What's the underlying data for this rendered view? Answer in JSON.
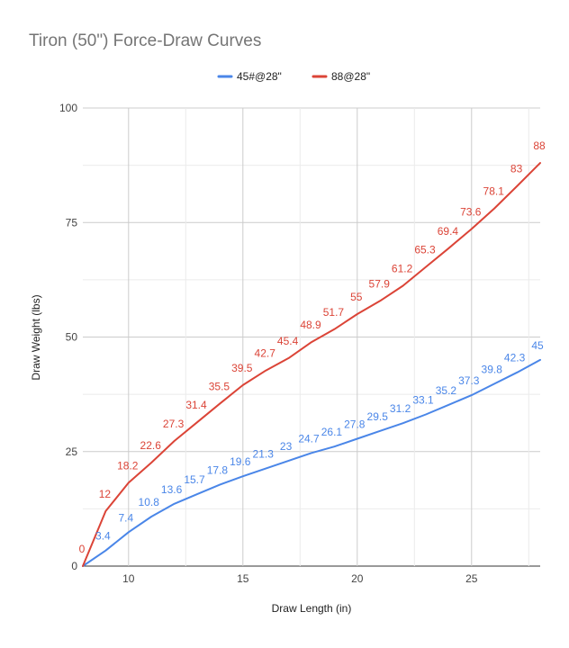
{
  "chart_data": {
    "type": "line",
    "title": "Tiron (50\") Force-Draw Curves",
    "xlabel": "Draw Length (in)",
    "ylabel": "Draw Weight (lbs)",
    "xlim": [
      8,
      28
    ],
    "ylim": [
      0,
      100
    ],
    "x_ticks": [
      "10",
      "15",
      "20",
      "25"
    ],
    "y_ticks": [
      "0",
      "25",
      "50",
      "75",
      "100"
    ],
    "grid": true,
    "legend_position": "top",
    "x": [
      8,
      9,
      10,
      11,
      12,
      13,
      14,
      15,
      16,
      17,
      18,
      19,
      20,
      21,
      22,
      23,
      24,
      25,
      26,
      27,
      28
    ],
    "series": [
      {
        "name": "45#@28\"",
        "color": "#4a86e8",
        "values": [
          0,
          3.4,
          7.4,
          10.8,
          13.6,
          15.7,
          17.8,
          19.6,
          21.3,
          23,
          24.7,
          26.1,
          27.8,
          29.5,
          31.2,
          33.1,
          35.2,
          37.3,
          39.8,
          42.3,
          45
        ],
        "labels": [
          "",
          "3.4",
          "7.4",
          "10.8",
          "13.6",
          "15.7",
          "17.8",
          "19.6",
          "21.3",
          "23",
          "24.7",
          "26.1",
          "27.8",
          "29.5",
          "31.2",
          "33.1",
          "35.2",
          "37.3",
          "39.8",
          "42.3",
          "45"
        ]
      },
      {
        "name": "88@28\"",
        "color": "#db4437",
        "values": [
          0,
          12,
          18.2,
          22.6,
          27.3,
          31.4,
          35.5,
          39.5,
          42.7,
          45.4,
          48.9,
          51.7,
          55,
          57.9,
          61.2,
          65.3,
          69.4,
          73.6,
          78.1,
          83,
          88
        ],
        "labels": [
          "0",
          "12",
          "18.2",
          "22.6",
          "27.3",
          "31.4",
          "35.5",
          "39.5",
          "42.7",
          "45.4",
          "48.9",
          "51.7",
          "55",
          "57.9",
          "61.2",
          "65.3",
          "69.4",
          "73.6",
          "78.1",
          "83",
          "88"
        ]
      }
    ]
  }
}
